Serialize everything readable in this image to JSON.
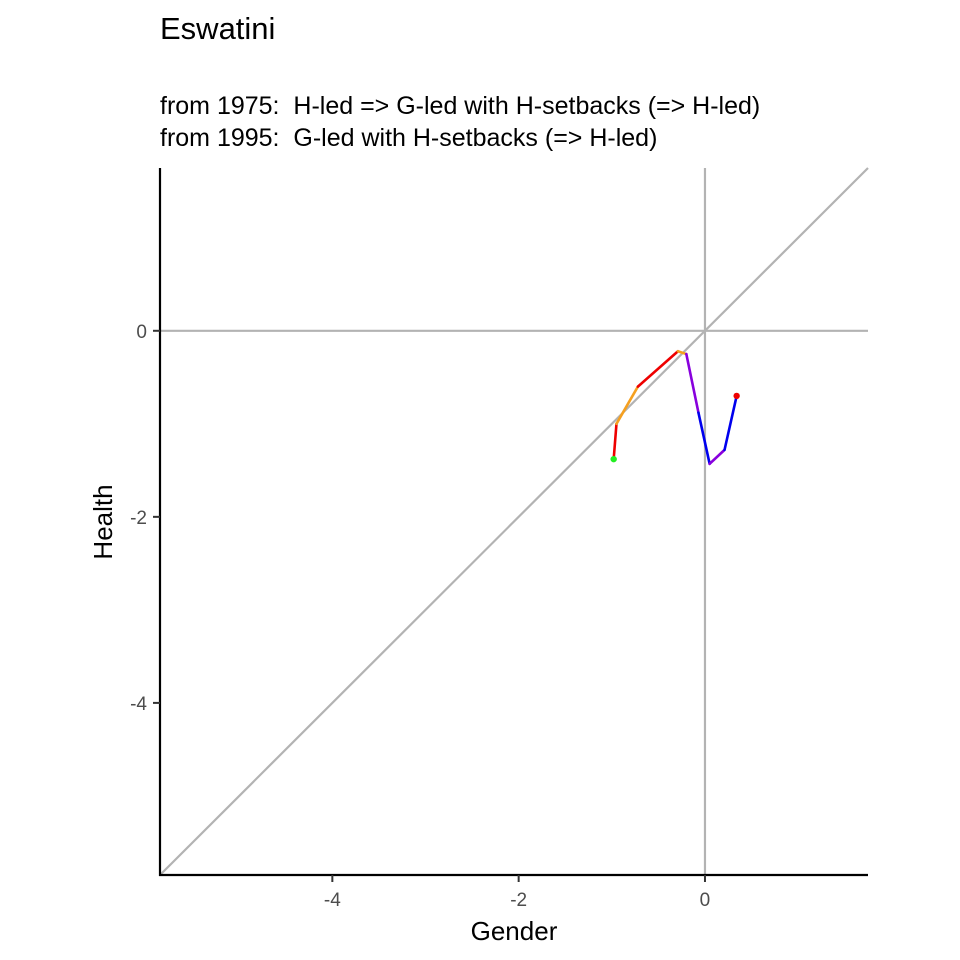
{
  "chart_data": {
    "type": "line",
    "title": "Eswatini",
    "subtitle_lines": [
      "from 1975:  H-led => G-led with H-setbacks (=> H-led)",
      "from 1995:  G-led with H-setbacks (=> H-led)"
    ],
    "xlabel": "Gender",
    "ylabel": "Health",
    "xlim": [
      -5.85,
      1.75
    ],
    "ylim": [
      -5.85,
      1.75
    ],
    "x_ticks": [
      -4,
      -2,
      0
    ],
    "y_ticks": [
      0,
      -2,
      -4
    ],
    "reference_lines": [
      "x = 0",
      "y = 0",
      "y = x"
    ],
    "grid": false,
    "legend": "none",
    "series": [
      {
        "color": "#ee0000",
        "points": [
          [
            -0.98,
            -1.38
          ],
          [
            -0.95,
            -1.0
          ]
        ]
      },
      {
        "color": "#f5a020",
        "points": [
          [
            -0.95,
            -1.0
          ],
          [
            -0.72,
            -0.6
          ]
        ]
      },
      {
        "color": "#ee0000",
        "points": [
          [
            -0.72,
            -0.6
          ],
          [
            -0.29,
            -0.22
          ]
        ]
      },
      {
        "color": "#f5a020",
        "points": [
          [
            -0.29,
            -0.22
          ],
          [
            -0.2,
            -0.25
          ]
        ]
      },
      {
        "color": "#8800dd",
        "points": [
          [
            -0.2,
            -0.25
          ],
          [
            -0.07,
            -0.88
          ]
        ]
      },
      {
        "color": "#0000ee",
        "points": [
          [
            -0.07,
            -0.88
          ],
          [
            0.05,
            -1.43
          ]
        ]
      },
      {
        "color": "#8800dd",
        "points": [
          [
            0.05,
            -1.43
          ],
          [
            0.21,
            -1.28
          ]
        ]
      },
      {
        "color": "#0000ee",
        "points": [
          [
            0.21,
            -1.28
          ],
          [
            0.34,
            -0.7
          ]
        ]
      }
    ],
    "markers": [
      {
        "label": "start",
        "x": -0.98,
        "y": -1.38,
        "color": "#22ee22"
      },
      {
        "label": "end",
        "x": 0.34,
        "y": -0.7,
        "color": "#ee0000"
      }
    ]
  }
}
